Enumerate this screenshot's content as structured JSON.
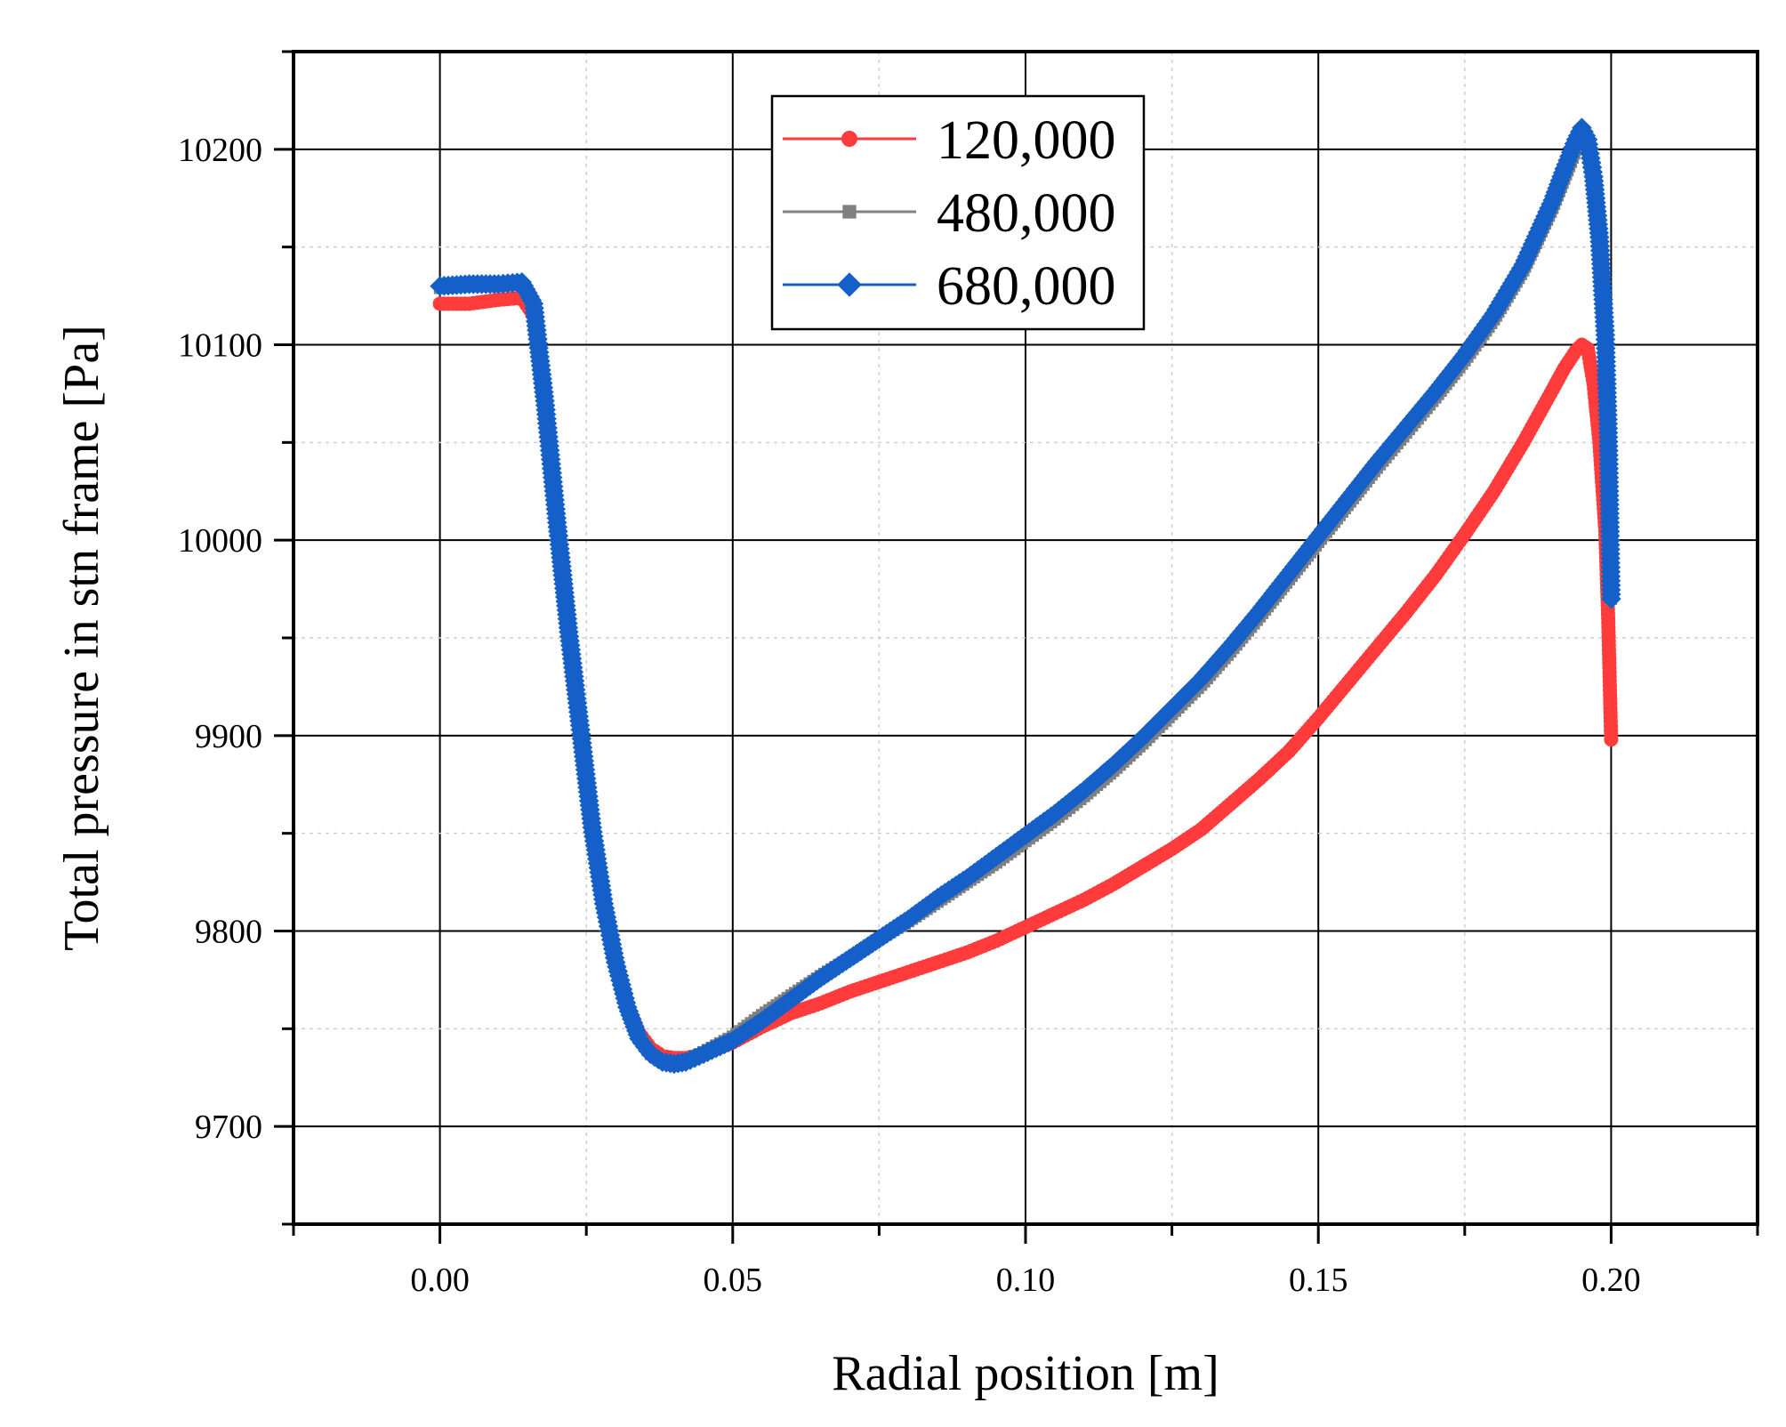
{
  "chart_data": {
    "type": "scatter",
    "xlabel": "Radial position [m]",
    "ylabel": "Total pressure in stn frame [Pa]",
    "xlim": [
      -0.025,
      0.225
    ],
    "ylim": [
      9650,
      10250
    ],
    "x_ticks": [
      0.0,
      0.05,
      0.1,
      0.15,
      0.2
    ],
    "x_tick_labels": [
      "0.00",
      "0.05",
      "0.10",
      "0.15",
      "0.20"
    ],
    "y_ticks": [
      9700,
      9800,
      9900,
      10000,
      10100,
      10200
    ],
    "y_tick_labels": [
      "9700",
      "9800",
      "9900",
      "10000",
      "10100",
      "10200"
    ],
    "grid": true,
    "legend_position": "top-center",
    "series": [
      {
        "name": "120,000",
        "color": "#ff3b3b",
        "marker": "circle",
        "points": [
          [
            0.0,
            10121
          ],
          [
            0.005,
            10121
          ],
          [
            0.01,
            10123
          ],
          [
            0.014,
            10124
          ],
          [
            0.016,
            10115
          ],
          [
            0.018,
            10065
          ],
          [
            0.02,
            10005
          ],
          [
            0.022,
            9950
          ],
          [
            0.024,
            9900
          ],
          [
            0.026,
            9850
          ],
          [
            0.028,
            9812
          ],
          [
            0.03,
            9783
          ],
          [
            0.032,
            9762
          ],
          [
            0.034,
            9748
          ],
          [
            0.036,
            9740
          ],
          [
            0.038,
            9736
          ],
          [
            0.04,
            9735
          ],
          [
            0.042,
            9735
          ],
          [
            0.045,
            9737
          ],
          [
            0.05,
            9743
          ],
          [
            0.055,
            9751
          ],
          [
            0.06,
            9758
          ],
          [
            0.065,
            9763
          ],
          [
            0.07,
            9769
          ],
          [
            0.075,
            9774
          ],
          [
            0.08,
            9779
          ],
          [
            0.085,
            9784
          ],
          [
            0.09,
            9789
          ],
          [
            0.095,
            9795
          ],
          [
            0.1,
            9802
          ],
          [
            0.105,
            9809
          ],
          [
            0.11,
            9816
          ],
          [
            0.115,
            9824
          ],
          [
            0.12,
            9833
          ],
          [
            0.125,
            9842
          ],
          [
            0.13,
            9852
          ],
          [
            0.135,
            9865
          ],
          [
            0.14,
            9878
          ],
          [
            0.145,
            9892
          ],
          [
            0.15,
            9909
          ],
          [
            0.155,
            9927
          ],
          [
            0.16,
            9945
          ],
          [
            0.165,
            9963
          ],
          [
            0.17,
            9982
          ],
          [
            0.175,
            10003
          ],
          [
            0.18,
            10025
          ],
          [
            0.185,
            10050
          ],
          [
            0.19,
            10077
          ],
          [
            0.192,
            10088
          ],
          [
            0.194,
            10097
          ],
          [
            0.195,
            10100
          ],
          [
            0.196,
            10098
          ],
          [
            0.197,
            10080
          ],
          [
            0.198,
            10050
          ],
          [
            0.199,
            10005
          ],
          [
            0.1995,
            9960
          ],
          [
            0.2,
            9898
          ]
        ]
      },
      {
        "name": "480,000",
        "color": "#808080",
        "marker": "square",
        "points": [
          [
            0.0,
            10129
          ],
          [
            0.005,
            10130
          ],
          [
            0.01,
            10130
          ],
          [
            0.014,
            10131
          ],
          [
            0.016,
            10120
          ],
          [
            0.018,
            10068
          ],
          [
            0.02,
            10008
          ],
          [
            0.022,
            9952
          ],
          [
            0.024,
            9902
          ],
          [
            0.026,
            9852
          ],
          [
            0.028,
            9813
          ],
          [
            0.03,
            9783
          ],
          [
            0.032,
            9760
          ],
          [
            0.034,
            9745
          ],
          [
            0.036,
            9737
          ],
          [
            0.038,
            9733
          ],
          [
            0.04,
            9732
          ],
          [
            0.042,
            9733
          ],
          [
            0.045,
            9738
          ],
          [
            0.05,
            9746
          ],
          [
            0.055,
            9757
          ],
          [
            0.06,
            9767
          ],
          [
            0.065,
            9777
          ],
          [
            0.07,
            9786
          ],
          [
            0.075,
            9796
          ],
          [
            0.08,
            9805
          ],
          [
            0.085,
            9815
          ],
          [
            0.09,
            9825
          ],
          [
            0.095,
            9835
          ],
          [
            0.1,
            9846
          ],
          [
            0.105,
            9857
          ],
          [
            0.11,
            9869
          ],
          [
            0.115,
            9882
          ],
          [
            0.12,
            9896
          ],
          [
            0.125,
            9911
          ],
          [
            0.13,
            9926
          ],
          [
            0.135,
            9943
          ],
          [
            0.14,
            9961
          ],
          [
            0.145,
            9980
          ],
          [
            0.15,
            9999
          ],
          [
            0.155,
            10018
          ],
          [
            0.16,
            10037
          ],
          [
            0.165,
            10055
          ],
          [
            0.17,
            10073
          ],
          [
            0.175,
            10092
          ],
          [
            0.18,
            10113
          ],
          [
            0.185,
            10138
          ],
          [
            0.19,
            10170
          ],
          [
            0.192,
            10185
          ],
          [
            0.194,
            10200
          ],
          [
            0.195,
            10206
          ],
          [
            0.196,
            10200
          ],
          [
            0.197,
            10180
          ],
          [
            0.198,
            10150
          ],
          [
            0.199,
            10100
          ],
          [
            0.1995,
            10050
          ],
          [
            0.2,
            9970
          ]
        ]
      },
      {
        "name": "680,000",
        "color": "#1560c8",
        "marker": "diamond",
        "points": [
          [
            0.0,
            10130
          ],
          [
            0.005,
            10131
          ],
          [
            0.01,
            10131
          ],
          [
            0.014,
            10132
          ],
          [
            0.016,
            10121
          ],
          [
            0.018,
            10069
          ],
          [
            0.02,
            10009
          ],
          [
            0.022,
            9953
          ],
          [
            0.024,
            9903
          ],
          [
            0.026,
            9853
          ],
          [
            0.028,
            9814
          ],
          [
            0.03,
            9784
          ],
          [
            0.032,
            9761
          ],
          [
            0.034,
            9745
          ],
          [
            0.036,
            9737
          ],
          [
            0.038,
            9733
          ],
          [
            0.04,
            9732
          ],
          [
            0.042,
            9733
          ],
          [
            0.045,
            9737
          ],
          [
            0.05,
            9744
          ],
          [
            0.055,
            9754
          ],
          [
            0.06,
            9765
          ],
          [
            0.065,
            9776
          ],
          [
            0.07,
            9786
          ],
          [
            0.075,
            9796
          ],
          [
            0.08,
            9806
          ],
          [
            0.085,
            9817
          ],
          [
            0.09,
            9827
          ],
          [
            0.095,
            9838
          ],
          [
            0.1,
            9849
          ],
          [
            0.105,
            9860
          ],
          [
            0.11,
            9872
          ],
          [
            0.115,
            9885
          ],
          [
            0.12,
            9899
          ],
          [
            0.125,
            9914
          ],
          [
            0.13,
            9929
          ],
          [
            0.135,
            9946
          ],
          [
            0.14,
            9964
          ],
          [
            0.145,
            9983
          ],
          [
            0.15,
            10002
          ],
          [
            0.155,
            10021
          ],
          [
            0.16,
            10040
          ],
          [
            0.165,
            10058
          ],
          [
            0.17,
            10076
          ],
          [
            0.175,
            10095
          ],
          [
            0.18,
            10116
          ],
          [
            0.185,
            10141
          ],
          [
            0.19,
            10174
          ],
          [
            0.192,
            10190
          ],
          [
            0.194,
            10205
          ],
          [
            0.195,
            10211
          ],
          [
            0.196,
            10205
          ],
          [
            0.197,
            10186
          ],
          [
            0.198,
            10155
          ],
          [
            0.199,
            10105
          ],
          [
            0.1995,
            10055
          ],
          [
            0.2,
            9970
          ]
        ]
      }
    ]
  }
}
